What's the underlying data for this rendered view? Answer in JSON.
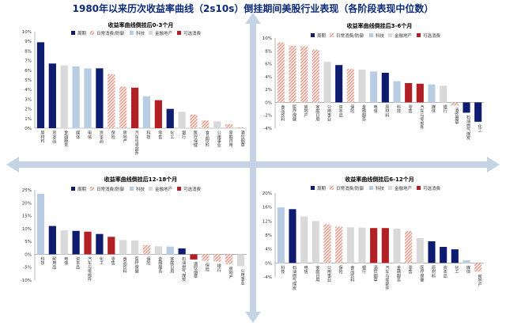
{
  "title": "1980年以来历次收益率曲线（2s10s）倒挂期间美股行业表现（各阶段表现中位数）",
  "colors": {
    "cycle": "#0d1c6e",
    "defensive": "#f3d9c9",
    "tech": "#b8cce4",
    "finance": "#d9d9d9",
    "consumer": "#b21f24",
    "axis_arrow": "#c5d3e6"
  },
  "legend": [
    {
      "key": "cycle",
      "label": "周期",
      "pattern": "solid"
    },
    {
      "key": "defensive",
      "label": "日常消费/防御",
      "pattern": "hatch"
    },
    {
      "key": "tech",
      "label": "科技",
      "pattern": "solid"
    },
    {
      "key": "finance",
      "label": "金融地产",
      "pattern": "solid"
    },
    {
      "key": "consumer",
      "label": "可选消费",
      "pattern": "solid"
    }
  ],
  "chart_data": [
    {
      "type": "bar",
      "title": "收益率曲线倒挂后0-3个月",
      "ylim": [
        0,
        10
      ],
      "yticks": [
        0,
        1,
        2,
        3,
        4,
        5,
        6,
        7,
        8,
        9,
        10
      ],
      "ytick_labels": [
        "0%",
        "1%",
        "2%",
        "3%",
        "4%",
        "5%",
        "6%",
        "7%",
        "8%",
        "9%",
        "10%"
      ],
      "categories": [
        "原材料",
        "资本品",
        "金融服务",
        "媒体",
        "电信",
        "资本品",
        "保险",
        "房地产",
        "汽车与零部件",
        "科技",
        "零售",
        "化工",
        "银行",
        "医疗保健",
        "食品饮料",
        "公用事业",
        "家庭日用",
        "酒饮烟草"
      ],
      "values": [
        8.9,
        6.7,
        6.5,
        6.4,
        6.2,
        6.2,
        5.6,
        4.3,
        4.2,
        3.3,
        2.9,
        2.0,
        1.7,
        1.4,
        0.8,
        0.7,
        0.4,
        0.1
      ],
      "groups": [
        "cycle",
        "cycle",
        "finance",
        "tech",
        "tech",
        "cycle",
        "defensive",
        "defensive",
        "consumer",
        "tech",
        "consumer",
        "cycle",
        "finance",
        "defensive",
        "defensive",
        "finance",
        "defensive",
        "defensive"
      ]
    },
    {
      "type": "bar",
      "title": "收益率曲线倒挂后3-6个月",
      "ylim": [
        -4,
        10
      ],
      "yticks": [
        -4,
        -2,
        0,
        2,
        4,
        6,
        8,
        10
      ],
      "ytick_labels": [
        "-4%",
        "-2%",
        "0%",
        "2%",
        "4%",
        "6%",
        "8%",
        "10%"
      ],
      "categories": [
        "食品饮料",
        "医疗保健",
        "房地产",
        "家庭日用",
        "公用事业",
        "资本品",
        "保险",
        "金融服务",
        "电信",
        "原材料",
        "科技",
        "零售",
        "汽车与零部件",
        "媒体",
        "银行",
        "酒饮烟草",
        "石油燃气煤炭",
        "化工"
      ],
      "values": [
        9.3,
        8.8,
        8.7,
        8.2,
        6.3,
        5.8,
        5.2,
        5.1,
        4.8,
        4.6,
        3.3,
        3.0,
        2.9,
        2.8,
        2.6,
        -0.5,
        -1.6,
        -3.0
      ],
      "groups": [
        "defensive",
        "defensive",
        "defensive",
        "defensive",
        "finance",
        "cycle",
        "defensive",
        "finance",
        "tech",
        "cycle",
        "tech",
        "consumer",
        "consumer",
        "tech",
        "finance",
        "defensive",
        "cycle",
        "cycle"
      ]
    },
    {
      "type": "bar",
      "title": "收益率曲线倒挂后12-18个月",
      "ylim": [
        -10,
        25
      ],
      "yticks": [
        -10,
        -5,
        0,
        5,
        10,
        15,
        20,
        25
      ],
      "ytick_labels": [
        "-10%",
        "-5%",
        "0%",
        "5%",
        "10%",
        "15%",
        "20%",
        "25%"
      ],
      "categories": [
        "科技",
        "耐用品",
        "电信",
        "资本品",
        "汽车与零部件",
        "化工",
        "零售",
        "食品饮料",
        "医疗保健",
        "保险",
        "金融服务",
        "家庭日用",
        "石油燃气煤炭",
        "酒饮烟草",
        "保险",
        "银行",
        "房地产",
        "公用事业"
      ],
      "values": [
        23.5,
        11.0,
        9.3,
        9.1,
        8.8,
        7.9,
        6.8,
        5.5,
        5.4,
        3.5,
        3.1,
        3.0,
        2.3,
        -2.0,
        -2.5,
        -2.8,
        -3.8,
        -4.6
      ],
      "groups": [
        "tech",
        "cycle",
        "finance",
        "cycle",
        "consumer",
        "cycle",
        "consumer",
        "finance",
        "finance",
        "defensive",
        "finance",
        "tech",
        "cycle",
        "consumer",
        "defensive",
        "defensive",
        "defensive",
        "finance"
      ]
    },
    {
      "type": "bar",
      "title": "收益率曲线倒挂后6-12个月",
      "ylim": [
        -4,
        20
      ],
      "yticks": [
        -4,
        0,
        4,
        8,
        12,
        16,
        20
      ],
      "ytick_labels": [
        "-4%",
        "0%",
        "4%",
        "8%",
        "12%",
        "16%",
        "20%"
      ],
      "categories": [
        "科技",
        "石油燃气煤炭",
        "电信",
        "家庭日用",
        "公用事业",
        "保险",
        "食品饮料",
        "银行",
        "酒饮烟草",
        "汽车与零部件",
        "金融服务",
        "零售",
        "医疗保健",
        "原材料",
        "资本品",
        "化工",
        "媒体",
        "房地产"
      ],
      "values": [
        15.9,
        15.4,
        13.3,
        12.0,
        11.1,
        10.4,
        10.2,
        10.1,
        10.0,
        10.0,
        9.8,
        9.1,
        7.1,
        6.2,
        4.6,
        3.9,
        0.8,
        -2.5
      ],
      "groups": [
        "tech",
        "cycle",
        "finance",
        "finance",
        "defensive",
        "defensive",
        "finance",
        "finance",
        "consumer",
        "consumer",
        "finance",
        "defensive",
        "finance",
        "cycle",
        "cycle",
        "cycle",
        "tech",
        "defensive"
      ]
    }
  ]
}
